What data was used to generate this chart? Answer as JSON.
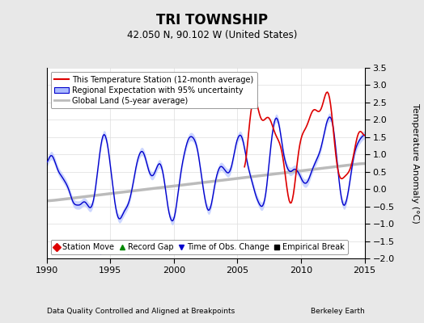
{
  "title": "TRI TOWNSHIP",
  "subtitle": "42.050 N, 90.102 W (United States)",
  "xlabel_left": "Data Quality Controlled and Aligned at Breakpoints",
  "xlabel_right": "Berkeley Earth",
  "ylabel": "Temperature Anomaly (°C)",
  "xlim": [
    1990,
    2015
  ],
  "ylim": [
    -2.0,
    3.5
  ],
  "yticks": [
    -2,
    -1.5,
    -1,
    -0.5,
    0,
    0.5,
    1,
    1.5,
    2,
    2.5,
    3,
    3.5
  ],
  "xticks": [
    1990,
    1995,
    2000,
    2005,
    2010,
    2015
  ],
  "background_color": "#e8e8e8",
  "plot_bg_color": "#ffffff",
  "regional_line_color": "#0000cc",
  "regional_fill_color": "#aabbff",
  "station_line_color": "#dd0000",
  "global_line_color": "#bbbbbb",
  "legend_labels": [
    "This Temperature Station (12-month average)",
    "Regional Expectation with 95% uncertainty",
    "Global Land (5-year average)"
  ],
  "marker_legend": [
    {
      "label": "Station Move",
      "color": "#dd0000",
      "marker": "D"
    },
    {
      "label": "Record Gap",
      "color": "#008800",
      "marker": "^"
    },
    {
      "label": "Time of Obs. Change",
      "color": "#0000cc",
      "marker": "v"
    },
    {
      "label": "Empirical Break",
      "color": "#000000",
      "marker": "s"
    }
  ]
}
